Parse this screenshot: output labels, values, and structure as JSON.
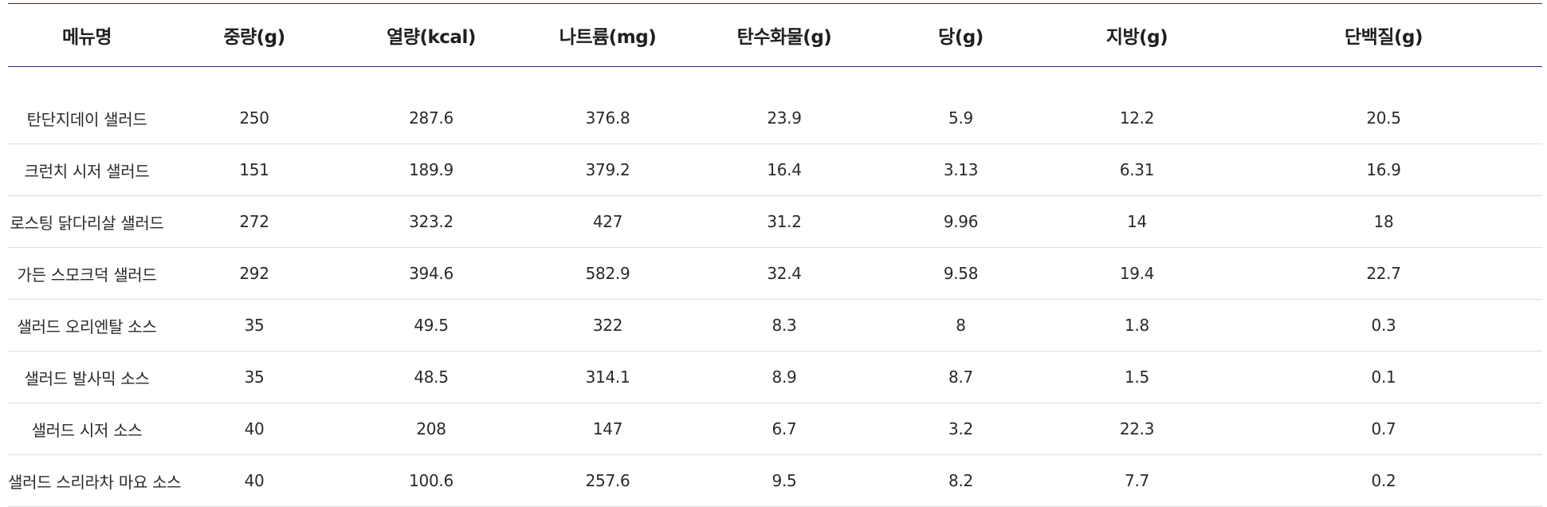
{
  "table": {
    "headers": [
      "메뉴명",
      "중량(g)",
      "열량(kcal)",
      "나트륨(mg)",
      "탄수화물(g)",
      "당(g)",
      "지방(g)",
      "단백질(g)"
    ],
    "rows": [
      [
        "탄단지데이 샐러드",
        "250",
        "287.6",
        "376.8",
        "23.9",
        "5.9",
        "12.2",
        "20.5"
      ],
      [
        "크런치 시저 샐러드",
        "151",
        "189.9",
        "379.2",
        "16.4",
        "3.13",
        "6.31",
        "16.9"
      ],
      [
        "로스팅 닭다리살 샐러드",
        "272",
        "323.2",
        "427",
        "31.2",
        "9.96",
        "14",
        "18"
      ],
      [
        "가든 스모크덕 샐러드",
        "292",
        "394.6",
        "582.9",
        "32.4",
        "9.58",
        "19.4",
        "22.7"
      ],
      [
        "샐러드 오리엔탈 소스",
        "35",
        "49.5",
        "322",
        "8.3",
        "8",
        "1.8",
        "0.3"
      ],
      [
        "샐러드 발사믹 소스",
        "35",
        "48.5",
        "314.1",
        "8.9",
        "8.7",
        "1.5",
        "0.1"
      ],
      [
        "샐러드 시저 소스",
        "40",
        "208",
        "147",
        "6.7",
        "3.2",
        "22.3",
        "0.7"
      ],
      [
        "샐러드 스리라차 마요 소스",
        "40",
        "100.6",
        "257.6",
        "9.5",
        "8.2",
        "7.7",
        "0.2"
      ]
    ]
  },
  "colors": {
    "header_rule": "#2b2f8f",
    "row_rule": "#dedede",
    "text": "#2a2a2a"
  }
}
